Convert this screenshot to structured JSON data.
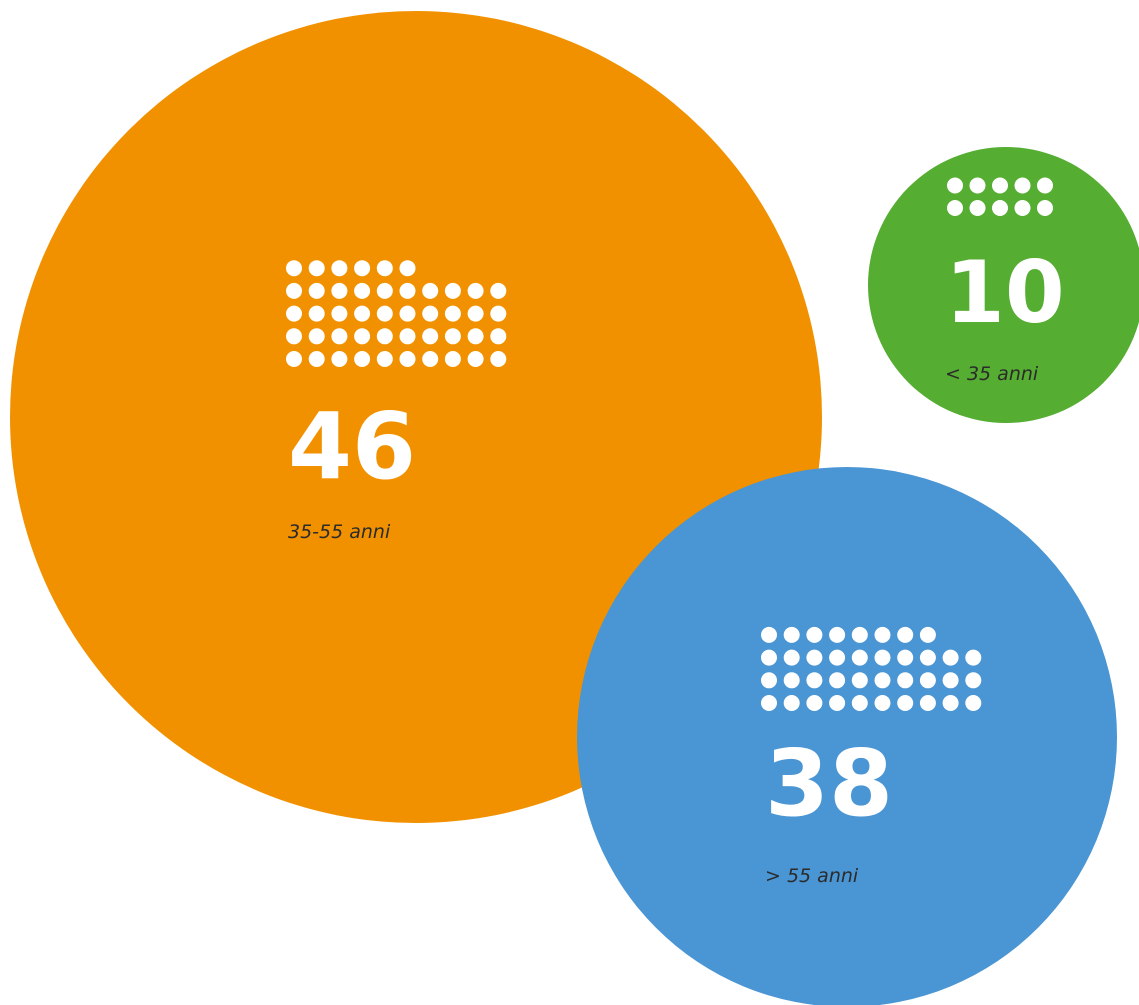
{
  "chart_data": {
    "type": "bubble",
    "categories": [
      "35-55 anni",
      "< 35 anni",
      "> 55 anni"
    ],
    "values": [
      46,
      10,
      38
    ],
    "colors": [
      "#f29100",
      "#55ad32",
      "#4a95d3"
    ]
  }
}
